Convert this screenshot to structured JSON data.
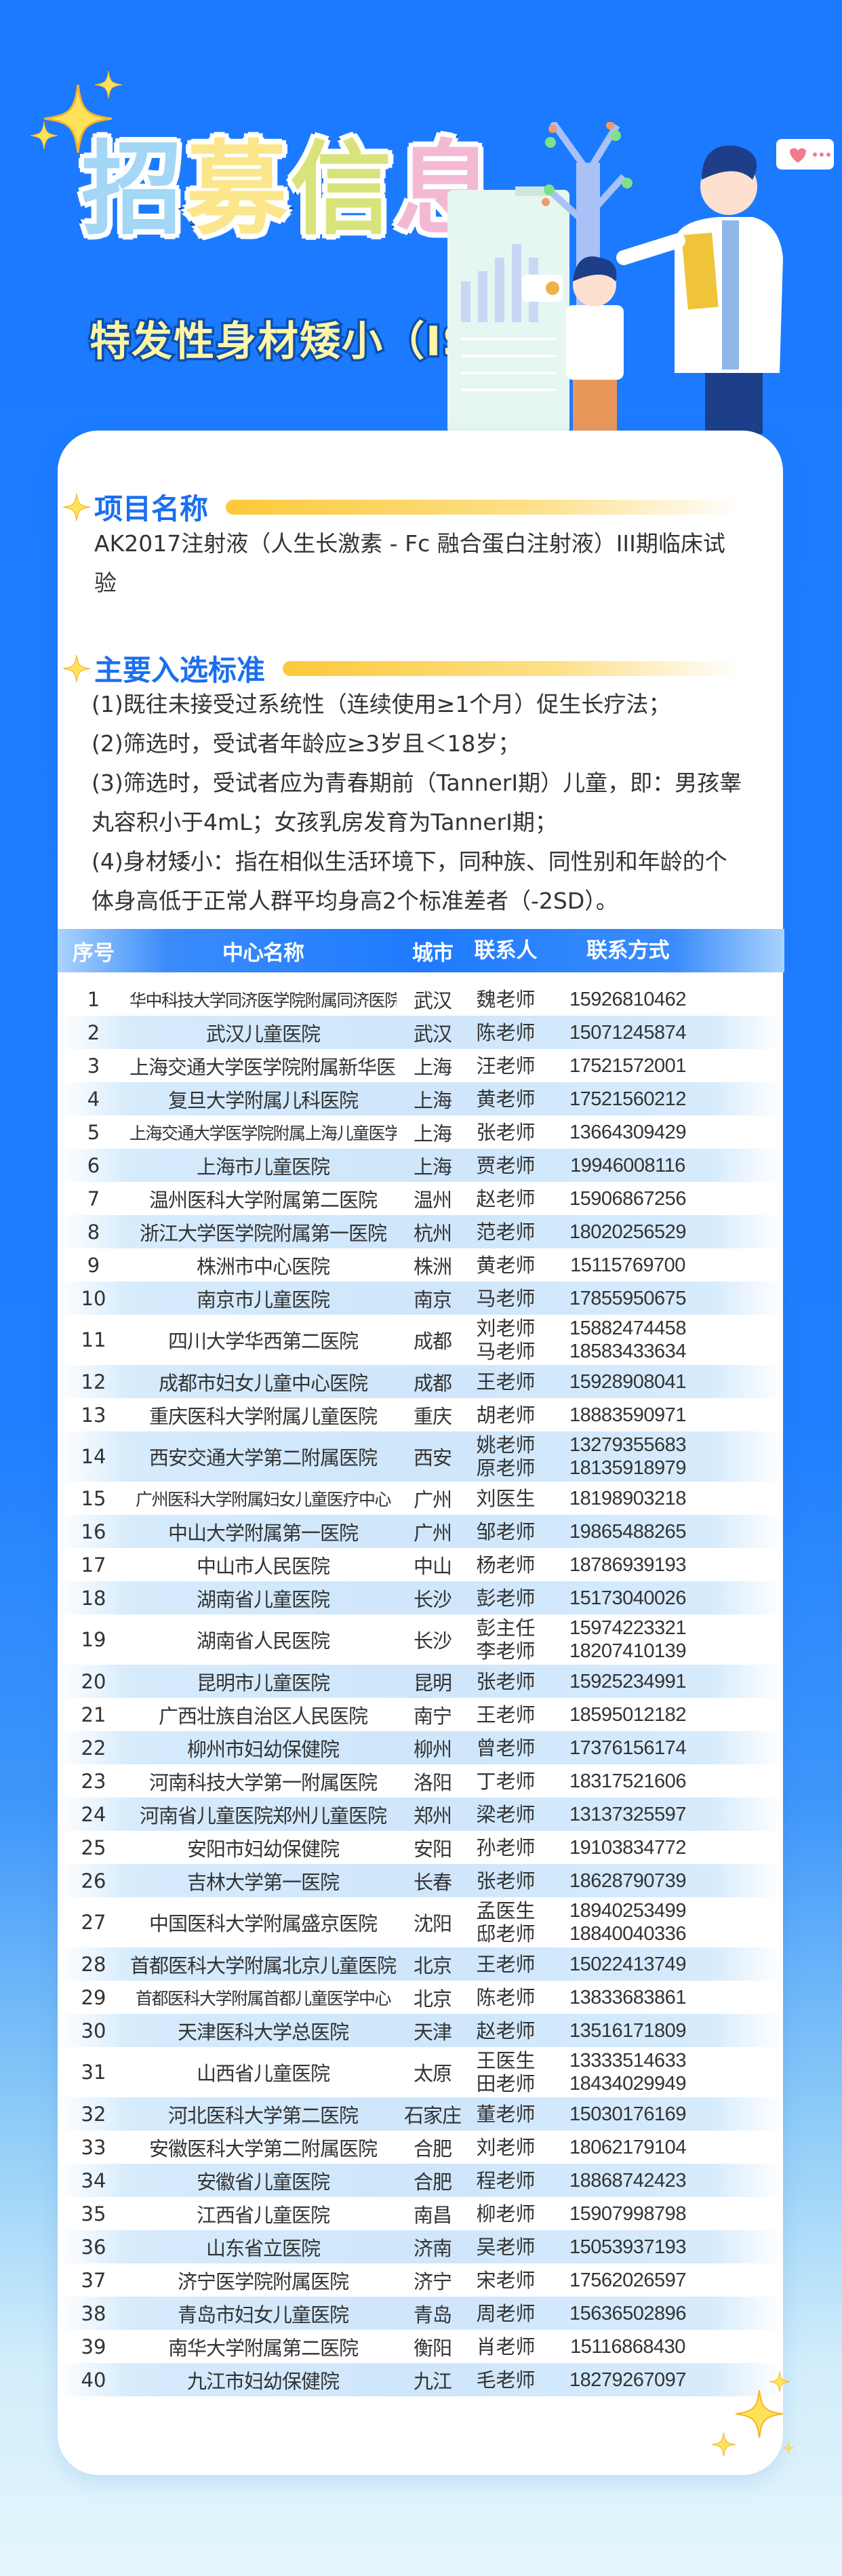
{
  "hero": {
    "title_chars": [
      "招",
      "募",
      "信",
      "息"
    ],
    "title_colors": [
      "#a4d6f6",
      "#fbe68c",
      "#d8e37b",
      "#f3b9d4"
    ],
    "subtitle": "特发性身材矮小（ISS）"
  },
  "colors": {
    "accent_blue": "#1a6ff0",
    "background_blue": "#1b79ff",
    "highlight_yellow": "#fbc93a",
    "row_stripe": "#cfe6fb"
  },
  "project": {
    "heading": "项目名称",
    "text": "AK2017注射液（人生长激素 - Fc 融合蛋白注射液）III期临床试验"
  },
  "criteria": {
    "heading": "主要入选标准",
    "items": [
      "(1)既往未接受过系统性（连续使用≥1个月）促生长疗法；",
      "(2)筛选时，受试者年龄应≥3岁且＜18岁；",
      "(3)筛选时，受试者应为青春期前（TannerI期）儿童，即：男孩睾丸容积小于4mL；女孩乳房发育为TannerI期；",
      "(4)身材矮小：指在相似生活环境下，同种族、同性别和年龄的个体身高低于正常人群平均身高2个标准差者（-2SD）。"
    ]
  },
  "table": {
    "headers": [
      "序号",
      "中心名称",
      "城市",
      "联系人",
      "联系方式"
    ],
    "rows": [
      [
        "1",
        "华中科技大学同济医学院附属同济医院",
        "武汉",
        [
          "魏老师"
        ],
        [
          "15926810462"
        ]
      ],
      [
        "2",
        "武汉儿童医院",
        "武汉",
        [
          "陈老师"
        ],
        [
          "15071245874"
        ]
      ],
      [
        "3",
        "上海交通大学医学院附属新华医院",
        "上海",
        [
          "汪老师"
        ],
        [
          "17521572001"
        ]
      ],
      [
        "4",
        "复旦大学附属儿科医院",
        "上海",
        [
          "黄老师"
        ],
        [
          "17521560212"
        ]
      ],
      [
        "5",
        "上海交通大学医学院附属上海儿童医学中心",
        "上海",
        [
          "张老师"
        ],
        [
          "13664309429"
        ]
      ],
      [
        "6",
        "上海市儿童医院",
        "上海",
        [
          "贾老师"
        ],
        [
          "19946008116"
        ]
      ],
      [
        "7",
        "温州医科大学附属第二医院",
        "温州",
        [
          "赵老师"
        ],
        [
          "15906867256"
        ]
      ],
      [
        "8",
        "浙江大学医学院附属第一医院",
        "杭州",
        [
          "范老师"
        ],
        [
          "18020256529"
        ]
      ],
      [
        "9",
        "株洲市中心医院",
        "株洲",
        [
          "黄老师"
        ],
        [
          "15115769700"
        ]
      ],
      [
        "10",
        "南京市儿童医院",
        "南京",
        [
          "马老师"
        ],
        [
          "17855950675"
        ]
      ],
      [
        "11",
        "四川大学华西第二医院",
        "成都",
        [
          "刘老师",
          "马老师"
        ],
        [
          "15882474458",
          "18583433634"
        ]
      ],
      [
        "12",
        "成都市妇女儿童中心医院",
        "成都",
        [
          "王老师"
        ],
        [
          "15928908041"
        ]
      ],
      [
        "13",
        "重庆医科大学附属儿童医院",
        "重庆",
        [
          "胡老师"
        ],
        [
          "18883590971"
        ]
      ],
      [
        "14",
        "西安交通大学第二附属医院",
        "西安",
        [
          "姚老师",
          "原老师"
        ],
        [
          "13279355683",
          "18135918979"
        ]
      ],
      [
        "15",
        "广州医科大学附属妇女儿童医疗中心",
        "广州",
        [
          "刘医生"
        ],
        [
          "18198903218"
        ]
      ],
      [
        "16",
        "中山大学附属第一医院",
        "广州",
        [
          "邹老师"
        ],
        [
          "19865488265"
        ]
      ],
      [
        "17",
        "中山市人民医院",
        "中山",
        [
          "杨老师"
        ],
        [
          "18786939193"
        ]
      ],
      [
        "18",
        "湖南省儿童医院",
        "长沙",
        [
          "彭老师"
        ],
        [
          "15173040026"
        ]
      ],
      [
        "19",
        "湖南省人民医院",
        "长沙",
        [
          "彭主任",
          "李老师"
        ],
        [
          "15974223321",
          "18207410139"
        ]
      ],
      [
        "20",
        "昆明市儿童医院",
        "昆明",
        [
          "张老师"
        ],
        [
          "15925234991"
        ]
      ],
      [
        "21",
        "广西壮族自治区人民医院",
        "南宁",
        [
          "王老师"
        ],
        [
          "18595012182"
        ]
      ],
      [
        "22",
        "柳州市妇幼保健院",
        "柳州",
        [
          "曾老师"
        ],
        [
          "17376156174"
        ]
      ],
      [
        "23",
        "河南科技大学第一附属医院",
        "洛阳",
        [
          "丁老师"
        ],
        [
          "18317521606"
        ]
      ],
      [
        "24",
        "河南省儿童医院郑州儿童医院",
        "郑州",
        [
          "梁老师"
        ],
        [
          "13137325597"
        ]
      ],
      [
        "25",
        "安阳市妇幼保健院",
        "安阳",
        [
          "孙老师"
        ],
        [
          "19103834772"
        ]
      ],
      [
        "26",
        "吉林大学第一医院",
        "长春",
        [
          "张老师"
        ],
        [
          "18628790739"
        ]
      ],
      [
        "27",
        "中国医科大学附属盛京医院",
        "沈阳",
        [
          "孟医生",
          "邸老师"
        ],
        [
          "18940253499",
          "18840040336"
        ]
      ],
      [
        "28",
        "首都医科大学附属北京儿童医院",
        "北京",
        [
          "王老师"
        ],
        [
          "15022413749"
        ]
      ],
      [
        "29",
        "首都医科大学附属首都儿童医学中心",
        "北京",
        [
          "陈老师"
        ],
        [
          "13833683861"
        ]
      ],
      [
        "30",
        "天津医科大学总医院",
        "天津",
        [
          "赵老师"
        ],
        [
          "13516171809"
        ]
      ],
      [
        "31",
        "山西省儿童医院",
        "太原",
        [
          "王医生",
          "田老师"
        ],
        [
          "13333514633",
          "18434029949"
        ]
      ],
      [
        "32",
        "河北医科大学第二医院",
        "石家庄",
        [
          "董老师"
        ],
        [
          "15030176169"
        ]
      ],
      [
        "33",
        "安徽医科大学第二附属医院",
        "合肥",
        [
          "刘老师"
        ],
        [
          "18062179104"
        ]
      ],
      [
        "34",
        "安徽省儿童医院",
        "合肥",
        [
          "程老师"
        ],
        [
          "18868742423"
        ]
      ],
      [
        "35",
        "江西省儿童医院",
        "南昌",
        [
          "柳老师"
        ],
        [
          "15907998798"
        ]
      ],
      [
        "36",
        "山东省立医院",
        "济南",
        [
          "吴老师"
        ],
        [
          "15053937193"
        ]
      ],
      [
        "37",
        "济宁医学院附属医院",
        "济宁",
        [
          "宋老师"
        ],
        [
          "17562026597"
        ]
      ],
      [
        "38",
        "青岛市妇女儿童医院",
        "青岛",
        [
          "周老师"
        ],
        [
          "15636502896"
        ]
      ],
      [
        "39",
        "南华大学附属第二医院",
        "衡阳",
        [
          "肖老师"
        ],
        [
          "15116868430"
        ]
      ],
      [
        "40",
        "九江市妇幼保健院",
        "九江",
        [
          "毛老师"
        ],
        [
          "18279267097"
        ]
      ]
    ]
  }
}
